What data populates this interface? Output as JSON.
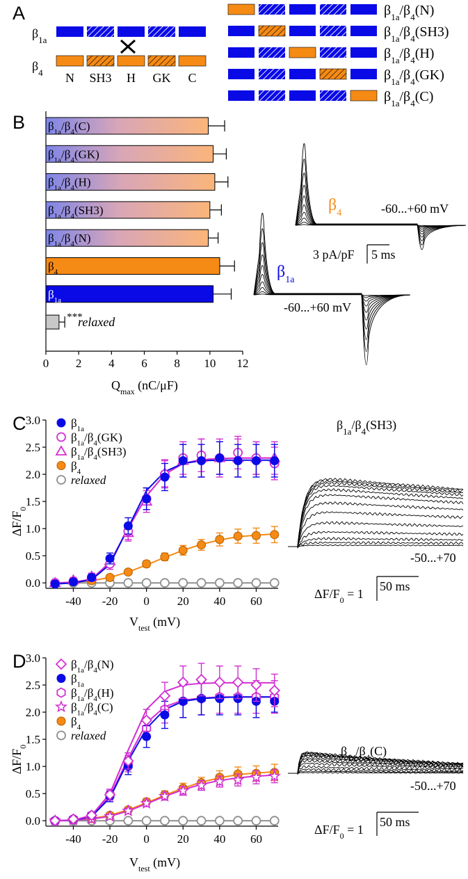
{
  "colors": {
    "beta1a": "#0a0ae6",
    "beta4": "#f58a14",
    "chimera_hatch": "#ffffff",
    "magenta": "#d22fd2",
    "grey": "#8f8f8f",
    "relaxed_bar": "#c8c8c8"
  },
  "panel_a": {
    "letter": "A",
    "beta1a_label": {
      "main": "β",
      "sub": "1a"
    },
    "beta4_label": {
      "main": "β",
      "sub": "4"
    },
    "domains": [
      "N",
      "SH3",
      "H",
      "GK",
      "C"
    ],
    "crossover_icon": "x-icon",
    "chimeras": [
      {
        "main": "β",
        "sub1": "1a",
        "mid": "/β",
        "sub2": "4",
        "tail": "(N)",
        "swapped_index": 0
      },
      {
        "main": "β",
        "sub1": "1a",
        "mid": "/β",
        "sub2": "4",
        "tail": "(SH3)",
        "swapped_index": 1
      },
      {
        "main": "β",
        "sub1": "1a",
        "mid": "/β",
        "sub2": "4",
        "tail": "(H)",
        "swapped_index": 2
      },
      {
        "main": "β",
        "sub1": "1a",
        "mid": "/β",
        "sub2": "4",
        "tail": "(GK)",
        "swapped_index": 3
      },
      {
        "main": "β",
        "sub1": "1a",
        "mid": "/β",
        "sub2": "4",
        "tail": "(C)",
        "swapped_index": 4
      }
    ]
  },
  "panel_b": {
    "letter": "B",
    "xlabel_main": "Q",
    "xlabel_sub": "max",
    "xlabel_unit": " (nC/μF)",
    "significance": "***",
    "beta4_trace_label": {
      "main": "β",
      "sub": "4"
    },
    "beta1a_trace_label": {
      "main": "β",
      "sub": "1a"
    },
    "voltage_range_1": "-60...+60 mV",
    "voltage_range_2": "-60...+60 mV",
    "scale_y": "3 pA/pF",
    "scale_x": "5 ms"
  },
  "panel_c": {
    "letter": "C",
    "ylabel_main": "ΔF/F",
    "ylabel_sub": "0",
    "xlabel_main": "V",
    "xlabel_sub": "test",
    "xlabel_unit": " (mV)",
    "trace_title": {
      "main": "β",
      "sub1": "1a",
      "mid": "/β",
      "sub2": "4",
      "tail": "(SH3)"
    },
    "voltage_range": "-50...+70",
    "scale_label": {
      "main": "ΔF/F",
      "sub": "0",
      "tail": " = 1"
    },
    "scale_x": "50 ms"
  },
  "panel_d": {
    "letter": "D",
    "ylabel_main": "ΔF/F",
    "ylabel_sub": "0",
    "xlabel_main": "V",
    "xlabel_sub": "test",
    "xlabel_unit": " (mV)",
    "trace_title": {
      "main": "β",
      "sub1": "1a",
      "mid": "/β",
      "sub2": "4",
      "tail": "(C)"
    },
    "voltage_range": "-50...+70",
    "scale_label": {
      "main": "ΔF/F",
      "sub": "0",
      "tail": " = 1"
    },
    "scale_x": "50 ms"
  },
  "chart_data": [
    {
      "panel": "B",
      "type": "bar",
      "orientation": "horizontal",
      "xlim": [
        0,
        12
      ],
      "xticks": [
        0,
        2,
        4,
        6,
        8,
        10,
        12
      ],
      "bars": [
        {
          "label": {
            "main": "β",
            "sub1": "1a",
            "mid": "/β",
            "sub2": "4",
            "tail": "(C)"
          },
          "value": 9.9,
          "error": 1.0,
          "fill": "gradient"
        },
        {
          "label": {
            "main": "β",
            "sub1": "1a",
            "mid": "/β",
            "sub2": "4",
            "tail": "(GK)"
          },
          "value": 10.2,
          "error": 0.8,
          "fill": "gradient"
        },
        {
          "label": {
            "main": "β",
            "sub1": "1a",
            "mid": "/β",
            "sub2": "4",
            "tail": "(H)"
          },
          "value": 10.3,
          "error": 0.8,
          "fill": "gradient"
        },
        {
          "label": {
            "main": "β",
            "sub1": "1a",
            "mid": "/β",
            "sub2": "4",
            "tail": "(SH3)"
          },
          "value": 10.0,
          "error": 0.7,
          "fill": "gradient"
        },
        {
          "label": {
            "main": "β",
            "sub1": "1a",
            "mid": "/β",
            "sub2": "4",
            "tail": "(N)"
          },
          "value": 9.9,
          "error": 0.6,
          "fill": "gradient"
        },
        {
          "label": {
            "main": "β",
            "sub1": "4",
            "mid": "",
            "sub2": "",
            "tail": ""
          },
          "value": 10.6,
          "error": 0.9,
          "fill": "beta4"
        },
        {
          "label": {
            "main": "β",
            "sub1": "1a",
            "mid": "",
            "sub2": "",
            "tail": ""
          },
          "value": 10.2,
          "error": 1.1,
          "fill": "beta1a"
        },
        {
          "label": {
            "main": "",
            "sub1": "",
            "mid": "",
            "sub2": "",
            "tail": ""
          },
          "value": 0.8,
          "error": 0.35,
          "fill": "relaxed",
          "annotation": "relaxed"
        }
      ]
    },
    {
      "panel": "C",
      "type": "line",
      "xlim": [
        -55,
        72
      ],
      "ylim": [
        -0.1,
        3.0
      ],
      "xticks": [
        -40,
        -20,
        0,
        20,
        40,
        60
      ],
      "yticks": [
        "0.0",
        "0.5",
        "1.0",
        "1.5",
        "2.0",
        "2.5",
        "3.0"
      ],
      "x": [
        -50,
        -40,
        -30,
        -20,
        -10,
        0,
        10,
        20,
        30,
        40,
        50,
        60,
        70
      ],
      "series": [
        {
          "legend": {
            "main": "β",
            "sub1": "1a",
            "mid": "",
            "sub2": "",
            "tail": ""
          },
          "marker": "filled-circle",
          "color": "beta1a",
          "values": [
            -0.02,
            0.02,
            0.1,
            0.45,
            1.05,
            1.55,
            1.95,
            2.25,
            2.25,
            2.3,
            2.25,
            2.25,
            2.25
          ],
          "errors": [
            0.03,
            0.05,
            0.06,
            0.1,
            0.15,
            0.2,
            0.25,
            0.3,
            0.3,
            0.3,
            0.3,
            0.3,
            0.3
          ],
          "fit": [
            -0.02,
            0.0,
            0.06,
            0.34,
            1.02,
            1.7,
            2.05,
            2.2,
            2.25,
            2.26,
            2.26,
            2.26,
            2.26
          ]
        },
        {
          "legend": {
            "main": "β",
            "sub1": "1a",
            "mid": "/β",
            "sub2": "4",
            "tail": "(GK)"
          },
          "marker": "open-circle",
          "color": "magenta",
          "values": [
            0.0,
            0.03,
            0.1,
            0.35,
            0.95,
            1.55,
            2.0,
            2.3,
            2.35,
            2.3,
            2.4,
            2.3,
            2.2
          ],
          "errors": [
            0.03,
            0.05,
            0.06,
            0.1,
            0.15,
            0.2,
            0.25,
            0.3,
            0.3,
            0.3,
            0.3,
            0.3,
            0.3
          ],
          "fit": [
            0.0,
            0.01,
            0.07,
            0.38,
            1.0,
            1.6,
            2.0,
            2.2,
            2.27,
            2.29,
            2.3,
            2.3,
            2.3
          ]
        },
        {
          "legend": {
            "main": "β",
            "sub1": "1a",
            "mid": "/β",
            "sub2": "4",
            "tail": "(SH3)"
          },
          "marker": "open-triangle",
          "color": "magenta",
          "values": [
            0.0,
            0.05,
            0.12,
            0.4,
            0.92,
            1.5,
            2.02,
            2.25,
            2.3,
            2.3,
            2.3,
            2.3,
            2.3
          ],
          "errors": [
            0.03,
            0.05,
            0.06,
            0.1,
            0.15,
            0.2,
            0.25,
            0.3,
            0.35,
            0.35,
            0.35,
            0.3,
            0.3
          ],
          "fit": [
            0.0,
            0.01,
            0.07,
            0.38,
            1.0,
            1.6,
            2.0,
            2.2,
            2.27,
            2.29,
            2.3,
            2.3,
            2.3
          ]
        },
        {
          "legend": {
            "main": "β",
            "sub1": "4",
            "mid": "",
            "sub2": "",
            "tail": ""
          },
          "marker": "filled-circle",
          "color": "beta4",
          "values": [
            0.0,
            0.02,
            0.04,
            0.1,
            0.2,
            0.35,
            0.48,
            0.6,
            0.7,
            0.8,
            0.86,
            0.87,
            0.89
          ],
          "errors": [
            0.02,
            0.02,
            0.03,
            0.04,
            0.05,
            0.06,
            0.07,
            0.09,
            0.1,
            0.12,
            0.13,
            0.14,
            0.15
          ],
          "fit": [
            0.0,
            0.01,
            0.04,
            0.1,
            0.2,
            0.33,
            0.47,
            0.6,
            0.71,
            0.79,
            0.85,
            0.88,
            0.9
          ]
        },
        {
          "legend": {
            "main": "relaxed",
            "sub1": "",
            "mid": "",
            "sub2": "",
            "tail": ""
          },
          "legend_italic": true,
          "marker": "open-circle",
          "color": "grey",
          "values": [
            0,
            0,
            0,
            0,
            0,
            0,
            0,
            0,
            0,
            0,
            0,
            0,
            0
          ],
          "errors": [
            0,
            0,
            0,
            0,
            0,
            0,
            0,
            0,
            0,
            0,
            0,
            0,
            0
          ],
          "fit": [
            0,
            0,
            0,
            0,
            0,
            0,
            0,
            0,
            0,
            0,
            0,
            0,
            0
          ]
        }
      ]
    },
    {
      "panel": "D",
      "type": "line",
      "xlim": [
        -55,
        72
      ],
      "ylim": [
        -0.1,
        3.0
      ],
      "xticks": [
        -40,
        -20,
        0,
        20,
        40,
        60
      ],
      "yticks": [
        "0.0",
        "0.5",
        "1.0",
        "1.5",
        "2.0",
        "2.5",
        "3.0"
      ],
      "x": [
        -50,
        -40,
        -30,
        -20,
        -10,
        0,
        10,
        20,
        30,
        40,
        50,
        60,
        70
      ],
      "series": [
        {
          "legend": {
            "main": "β",
            "sub1": "1a",
            "mid": "/β",
            "sub2": "4",
            "tail": "(N)"
          },
          "marker": "open-diamond",
          "color": "magenta",
          "values": [
            0.0,
            0.03,
            0.1,
            0.48,
            1.1,
            1.85,
            2.3,
            2.55,
            2.6,
            2.55,
            2.55,
            2.5,
            2.4
          ],
          "errors": [
            0.03,
            0.05,
            0.06,
            0.1,
            0.15,
            0.2,
            0.25,
            0.3,
            0.3,
            0.3,
            0.3,
            0.3,
            0.3
          ],
          "fit": [
            0.0,
            0.01,
            0.1,
            0.5,
            1.3,
            2.05,
            2.38,
            2.5,
            2.53,
            2.54,
            2.54,
            2.54,
            2.54
          ]
        },
        {
          "legend": {
            "main": "β",
            "sub1": "1a",
            "mid": "",
            "sub2": "",
            "tail": ""
          },
          "marker": "filled-circle",
          "color": "beta1a",
          "values": [
            0.0,
            0.03,
            0.1,
            0.45,
            1.0,
            1.55,
            1.95,
            2.2,
            2.25,
            2.25,
            2.25,
            2.2,
            2.2
          ],
          "errors": [
            0.03,
            0.05,
            0.06,
            0.1,
            0.15,
            0.2,
            0.25,
            0.3,
            0.3,
            0.3,
            0.3,
            0.3,
            0.2
          ],
          "fit": [
            0.0,
            0.01,
            0.08,
            0.42,
            1.1,
            1.7,
            2.05,
            2.2,
            2.25,
            2.27,
            2.28,
            2.28,
            2.28
          ]
        },
        {
          "legend": {
            "main": "β",
            "sub1": "1a",
            "mid": "/β",
            "sub2": "4",
            "tail": "(H)"
          },
          "marker": "open-hexagon",
          "color": "magenta",
          "values": [
            0.0,
            0.03,
            0.1,
            0.48,
            1.05,
            1.7,
            2.05,
            2.2,
            2.25,
            2.28,
            2.28,
            2.28,
            2.28
          ],
          "errors": [
            0.03,
            0.05,
            0.06,
            0.1,
            0.15,
            0.2,
            0.25,
            0.3,
            0.3,
            0.3,
            0.3,
            0.3,
            0.3
          ],
          "fit": [
            0.0,
            0.01,
            0.09,
            0.45,
            1.15,
            1.8,
            2.1,
            2.22,
            2.26,
            2.28,
            2.28,
            2.28,
            2.28
          ]
        },
        {
          "legend": {
            "main": "β",
            "sub1": "1a",
            "mid": "/β",
            "sub2": "4",
            "tail": "(C)"
          },
          "marker": "open-star",
          "color": "magenta",
          "values": [
            0.0,
            0.01,
            0.03,
            0.08,
            0.18,
            0.32,
            0.45,
            0.55,
            0.65,
            0.72,
            0.75,
            0.8,
            0.82
          ],
          "errors": [
            0.02,
            0.02,
            0.03,
            0.04,
            0.05,
            0.06,
            0.07,
            0.08,
            0.09,
            0.1,
            0.11,
            0.12,
            0.12
          ],
          "fit": [
            0.0,
            0.01,
            0.03,
            0.08,
            0.18,
            0.31,
            0.45,
            0.57,
            0.67,
            0.74,
            0.79,
            0.82,
            0.84
          ]
        },
        {
          "legend": {
            "main": "β",
            "sub1": "4",
            "mid": "",
            "sub2": "",
            "tail": ""
          },
          "marker": "filled-circle",
          "color": "beta4",
          "values": [
            0.0,
            0.02,
            0.04,
            0.1,
            0.2,
            0.35,
            0.48,
            0.6,
            0.7,
            0.8,
            0.86,
            0.87,
            0.89
          ],
          "errors": [
            0.02,
            0.02,
            0.03,
            0.04,
            0.05,
            0.06,
            0.07,
            0.09,
            0.1,
            0.12,
            0.13,
            0.14,
            0.15
          ],
          "fit": [
            0.0,
            0.01,
            0.04,
            0.1,
            0.2,
            0.33,
            0.47,
            0.6,
            0.71,
            0.79,
            0.85,
            0.88,
            0.9
          ]
        },
        {
          "legend": {
            "main": "relaxed",
            "sub1": "",
            "mid": "",
            "sub2": "",
            "tail": ""
          },
          "legend_italic": true,
          "marker": "open-circle",
          "color": "grey",
          "values": [
            0,
            0,
            0,
            0,
            0,
            0,
            0,
            0,
            0,
            0,
            0,
            0,
            0
          ],
          "errors": [
            0,
            0,
            0,
            0,
            0,
            0,
            0,
            0,
            0,
            0,
            0,
            0,
            0
          ],
          "fit": [
            0,
            0,
            0,
            0,
            0,
            0,
            0,
            0,
            0,
            0,
            0,
            0,
            0
          ]
        }
      ]
    }
  ]
}
